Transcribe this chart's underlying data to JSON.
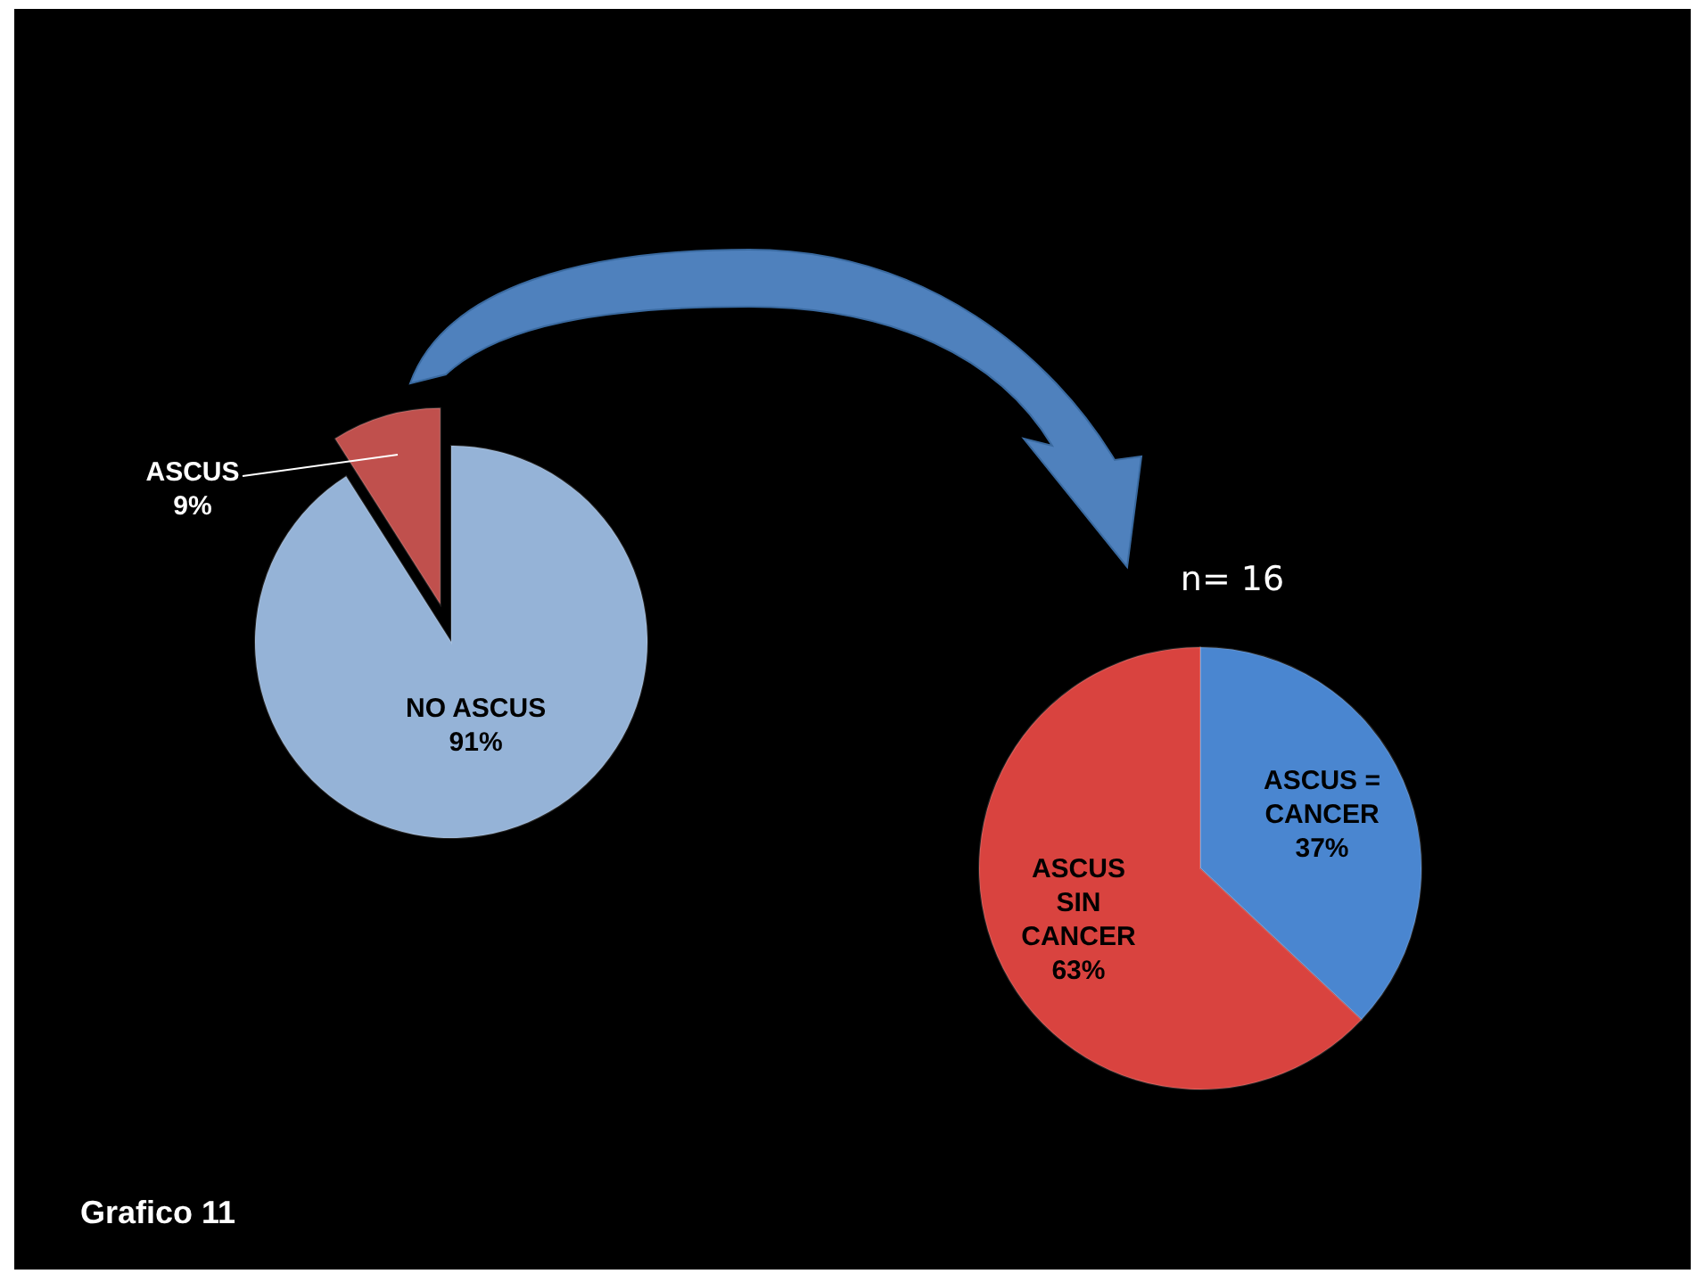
{
  "chart_data": [
    {
      "type": "pie",
      "categories": [
        "ASCUS",
        "NO ASCUS"
      ],
      "values": [
        9,
        91
      ],
      "colors": [
        "#c0504d",
        "#95b3d7"
      ],
      "value_labels": [
        "9%",
        "91%"
      ],
      "annotations": [
        "Grafico 11"
      ]
    },
    {
      "type": "pie",
      "title": "n= 16",
      "categories": [
        "ASCUS = CANCER",
        "ASCUS SIN CANCER"
      ],
      "values": [
        37,
        63
      ],
      "colors": [
        "#4a86d0",
        "#d9433f"
      ],
      "value_labels": [
        "37%",
        "63%"
      ]
    }
  ]
}
